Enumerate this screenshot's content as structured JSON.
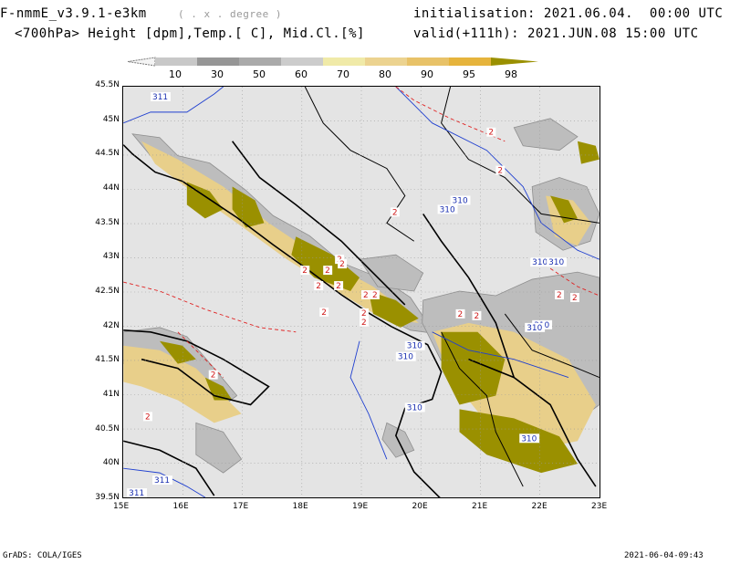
{
  "header": {
    "model": "F-nmmE_v3.9.1-e3km",
    "unit": "( . x . degree )",
    "fields": "<700hPa> Height [dpm],Temp.[ C], Mid.Cl.[%]",
    "init": "initialisation: 2021.06.04.  00:00 UTC",
    "valid": "valid(+111h): 2021.JUN.08 15:00 UTC"
  },
  "colorbar": {
    "labels": [
      "10",
      "30",
      "50",
      "60",
      "70",
      "80",
      "90",
      "95",
      "98"
    ],
    "colors": [
      "#f4f4f4",
      "#c8c8c8",
      "#969696",
      "#aaaaaa",
      "#cccccc",
      "#f0eaa8",
      "#ecd390",
      "#e8c268",
      "#e6b43c",
      "#9a9000"
    ]
  },
  "map": {
    "lat_labels": [
      "45.5N",
      "45N",
      "44.5N",
      "44N",
      "43.5N",
      "43N",
      "42.5N",
      "42N",
      "41.5N",
      "41N",
      "40.5N",
      "40N",
      "39.5N"
    ],
    "lon_labels": [
      "15E",
      "16E",
      "17E",
      "18E",
      "19E",
      "20E",
      "21E",
      "22E",
      "23E"
    ],
    "contour_labels": {
      "height": [
        "311",
        "311",
        "310",
        "310",
        "310",
        "310",
        "310",
        "310",
        "310",
        "310",
        "310",
        "310",
        "311"
      ],
      "temp": [
        "2",
        "2",
        "2",
        "2",
        "2",
        "2",
        "2",
        "2",
        "2",
        "2",
        "2",
        "2",
        "2",
        "2",
        "2",
        "2",
        "2",
        "2",
        "2",
        "2"
      ]
    }
  },
  "footer": {
    "left": "GrADS: COLA/IGES",
    "right": "2021-06-04-09:43"
  }
}
